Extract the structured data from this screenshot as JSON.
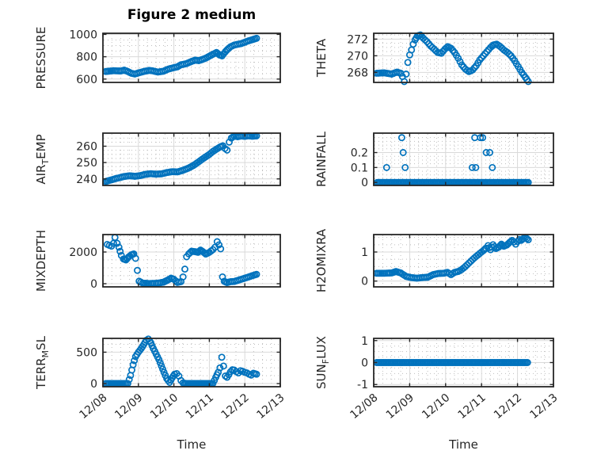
{
  "title": "Figure 2 medium",
  "xlabel": "Time",
  "x_tick_labels": [
    "12/08",
    "12/09",
    "12/10",
    "12/11",
    "12/12",
    "12/13"
  ],
  "colors": {
    "marker": "#0072BD",
    "frame": "#262626",
    "text": "#262626",
    "grid_major": "#d9d9d9",
    "grid_minor": "#bfbfbf",
    "background": "#ffffff"
  },
  "marker": {
    "radius": 3.6,
    "stroke_width": 1.7
  },
  "chart_data": [
    {
      "name": "PRESSURE",
      "type": "scatter",
      "row": 0,
      "col": 0,
      "ylabel_parts": [
        {
          "text": "PRESSURE",
          "sub": false
        }
      ],
      "xlim": [
        0,
        5
      ],
      "x_major_step": 1,
      "x_minor_step": 0.25,
      "ylim": [
        570,
        1010
      ],
      "yticks": [
        600,
        800,
        1000
      ],
      "ytick_labels": [
        "600",
        "800",
        "1000"
      ],
      "y_minor_step": 50,
      "sample_step_days": 0.045,
      "show_x_tick_labels": false,
      "trend": [
        [
          0.08,
          668
        ],
        [
          0.3,
          675
        ],
        [
          0.5,
          672
        ],
        [
          0.6,
          680
        ],
        [
          0.7,
          668
        ],
        [
          0.8,
          652
        ],
        [
          0.9,
          645
        ],
        [
          1.0,
          655
        ],
        [
          1.15,
          668
        ],
        [
          1.3,
          678
        ],
        [
          1.4,
          674
        ],
        [
          1.55,
          663
        ],
        [
          1.7,
          670
        ],
        [
          1.85,
          690
        ],
        [
          2.0,
          703
        ],
        [
          2.1,
          710
        ],
        [
          2.2,
          728
        ],
        [
          2.35,
          738
        ],
        [
          2.5,
          758
        ],
        [
          2.6,
          770
        ],
        [
          2.7,
          765
        ],
        [
          2.8,
          775
        ],
        [
          2.9,
          788
        ],
        [
          3.0,
          805
        ],
        [
          3.1,
          822
        ],
        [
          3.2,
          838
        ],
        [
          3.28,
          818
        ],
        [
          3.36,
          808
        ],
        [
          3.45,
          845
        ],
        [
          3.52,
          868
        ],
        [
          3.6,
          890
        ],
        [
          3.7,
          905
        ],
        [
          3.8,
          912
        ],
        [
          3.9,
          918
        ],
        [
          4.0,
          930
        ],
        [
          4.1,
          942
        ],
        [
          4.2,
          952
        ],
        [
          4.33,
          965
        ]
      ]
    },
    {
      "name": "THETA",
      "type": "scatter",
      "row": 0,
      "col": 1,
      "ylabel_parts": [
        {
          "text": "THETA",
          "sub": false
        }
      ],
      "xlim": [
        0,
        5
      ],
      "x_major_step": 1,
      "x_minor_step": 0.25,
      "ylim": [
        266.8,
        272.7
      ],
      "yticks": [
        268,
        270,
        272
      ],
      "ytick_labels": [
        "268",
        "270",
        "272"
      ],
      "y_minor_step": 0.5,
      "sample_step_days": 0.045,
      "show_x_tick_labels": false,
      "trend": [
        [
          0.08,
          267.9
        ],
        [
          0.3,
          267.95
        ],
        [
          0.5,
          267.8
        ],
        [
          0.65,
          268.05
        ],
        [
          0.75,
          267.9
        ],
        [
          0.8,
          267.5
        ],
        [
          0.85,
          266.9
        ],
        [
          0.9,
          267.8
        ],
        [
          0.95,
          269.2
        ],
        [
          1.0,
          270.1
        ],
        [
          1.05,
          270.7
        ],
        [
          1.1,
          271.4
        ],
        [
          1.15,
          271.9
        ],
        [
          1.22,
          272.4
        ],
        [
          1.3,
          272.5
        ],
        [
          1.38,
          272.1
        ],
        [
          1.48,
          271.7
        ],
        [
          1.58,
          271.2
        ],
        [
          1.68,
          270.8
        ],
        [
          1.78,
          270.4
        ],
        [
          1.88,
          270.3
        ],
        [
          1.98,
          270.8
        ],
        [
          2.06,
          271.1
        ],
        [
          2.15,
          270.9
        ],
        [
          2.25,
          270.4
        ],
        [
          2.35,
          269.7
        ],
        [
          2.45,
          268.9
        ],
        [
          2.55,
          268.4
        ],
        [
          2.65,
          268.1
        ],
        [
          2.75,
          268.3
        ],
        [
          2.85,
          268.8
        ],
        [
          2.95,
          269.5
        ],
        [
          3.05,
          270.0
        ],
        [
          3.15,
          270.5
        ],
        [
          3.25,
          271.0
        ],
        [
          3.33,
          271.3
        ],
        [
          3.42,
          271.4
        ],
        [
          3.52,
          271.1
        ],
        [
          3.62,
          270.7
        ],
        [
          3.72,
          270.4
        ],
        [
          3.82,
          270.0
        ],
        [
          3.92,
          269.4
        ],
        [
          4.02,
          268.7
        ],
        [
          4.12,
          268.0
        ],
        [
          4.22,
          267.4
        ],
        [
          4.3,
          266.9
        ]
      ]
    },
    {
      "name": "AIR_TEMP",
      "type": "scatter",
      "row": 1,
      "col": 0,
      "ylabel_parts": [
        {
          "text": "AIR",
          "sub": false
        },
        {
          "text": "T",
          "sub": true
        },
        {
          "text": "EMP",
          "sub": false
        }
      ],
      "xlim": [
        0,
        5
      ],
      "x_major_step": 1,
      "x_minor_step": 0.25,
      "ylim": [
        236,
        268
      ],
      "yticks": [
        240,
        250,
        260
      ],
      "ytick_labels": [
        "240",
        "250",
        "260"
      ],
      "y_minor_step": 2.5,
      "sample_step_days": 0.045,
      "show_x_tick_labels": false,
      "trend": [
        [
          0.08,
          238.4
        ],
        [
          0.2,
          239.2
        ],
        [
          0.4,
          240.4
        ],
        [
          0.6,
          241.5
        ],
        [
          0.75,
          241.9
        ],
        [
          0.9,
          241.6
        ],
        [
          1.05,
          242.0
        ],
        [
          1.2,
          242.8
        ],
        [
          1.35,
          243.2
        ],
        [
          1.5,
          242.9
        ],
        [
          1.65,
          243.1
        ],
        [
          1.8,
          243.9
        ],
        [
          1.95,
          244.4
        ],
        [
          2.1,
          244.3
        ],
        [
          2.25,
          245.2
        ],
        [
          2.4,
          246.5
        ],
        [
          2.55,
          248.2
        ],
        [
          2.7,
          250.5
        ],
        [
          2.85,
          252.8
        ],
        [
          3.0,
          255.0
        ],
        [
          3.1,
          256.8
        ],
        [
          3.2,
          258.2
        ],
        [
          3.3,
          259.5
        ],
        [
          3.38,
          260.3
        ],
        [
          3.44,
          258.6
        ],
        [
          3.5,
          257.6
        ],
        [
          3.56,
          262.5
        ],
        [
          3.62,
          265.0
        ],
        [
          3.7,
          266.2
        ],
        [
          3.8,
          265.8
        ],
        [
          3.9,
          266.3
        ],
        [
          4.0,
          266.0
        ],
        [
          4.1,
          266.4
        ],
        [
          4.2,
          266.1
        ],
        [
          4.33,
          266.3
        ]
      ]
    },
    {
      "name": "RAINFALL",
      "type": "scatter",
      "row": 1,
      "col": 1,
      "ylabel_parts": [
        {
          "text": "RAINFALL",
          "sub": false
        }
      ],
      "xlim": [
        0,
        5
      ],
      "x_major_step": 1,
      "x_minor_step": 0.25,
      "ylim": [
        -0.02,
        0.33
      ],
      "yticks": [
        0,
        0.1,
        0.2
      ],
      "ytick_labels": [
        "0",
        "0.1",
        "0.2"
      ],
      "y_minor_step": 0.025,
      "sample_step_days": 0.04,
      "show_x_tick_labels": false,
      "trend": [
        [
          0.1,
          0
        ],
        [
          4.3,
          0
        ]
      ],
      "points": [
        [
          0.36,
          0.1
        ],
        [
          0.78,
          0.3
        ],
        [
          0.82,
          0.2
        ],
        [
          0.875,
          0.1
        ],
        [
          2.74,
          0.1
        ],
        [
          2.81,
          0.3
        ],
        [
          2.84,
          0.1
        ],
        [
          2.97,
          0.3
        ],
        [
          3.03,
          0.3
        ],
        [
          3.13,
          0.2
        ],
        [
          3.23,
          0.2
        ],
        [
          3.3,
          0.1
        ]
      ]
    },
    {
      "name": "MIXDEPTH",
      "type": "scatter",
      "row": 2,
      "col": 0,
      "ylabel_parts": [
        {
          "text": "MIXDEPTH",
          "sub": false
        }
      ],
      "xlim": [
        0,
        5
      ],
      "x_major_step": 1,
      "x_minor_step": 0.25,
      "ylim": [
        -200,
        3100
      ],
      "yticks": [
        0,
        2000
      ],
      "ytick_labels": [
        "0",
        "2000"
      ],
      "y_minor_step": 500,
      "sample_step_days": 0.045,
      "show_x_tick_labels": false,
      "trend": [
        [
          0.12,
          2480
        ],
        [
          0.18,
          2420
        ],
        [
          0.24,
          2370
        ],
        [
          0.3,
          2550
        ],
        [
          0.34,
          2920
        ],
        [
          0.4,
          2550
        ],
        [
          0.45,
          2300
        ],
        [
          0.52,
          1780
        ],
        [
          0.58,
          1560
        ],
        [
          0.65,
          1500
        ],
        [
          0.72,
          1680
        ],
        [
          0.8,
          1820
        ],
        [
          0.87,
          1880
        ],
        [
          0.92,
          1600
        ],
        [
          0.97,
          840
        ],
        [
          1.02,
          160
        ],
        [
          1.12,
          40
        ],
        [
          1.3,
          10
        ],
        [
          1.5,
          25
        ],
        [
          1.7,
          90
        ],
        [
          1.82,
          220
        ],
        [
          1.92,
          350
        ],
        [
          2.0,
          280
        ],
        [
          2.1,
          80
        ],
        [
          2.2,
          130
        ],
        [
          2.26,
          430
        ],
        [
          2.31,
          920
        ],
        [
          2.36,
          1700
        ],
        [
          2.42,
          1880
        ],
        [
          2.5,
          2050
        ],
        [
          2.6,
          2020
        ],
        [
          2.68,
          1980
        ],
        [
          2.75,
          2120
        ],
        [
          2.82,
          2020
        ],
        [
          2.9,
          1870
        ],
        [
          3.0,
          1980
        ],
        [
          3.1,
          2150
        ],
        [
          3.16,
          2300
        ],
        [
          3.22,
          2650
        ],
        [
          3.27,
          2450
        ],
        [
          3.32,
          2200
        ],
        [
          3.37,
          430
        ],
        [
          3.42,
          150
        ],
        [
          3.5,
          70
        ],
        [
          3.6,
          130
        ],
        [
          3.7,
          140
        ],
        [
          3.8,
          210
        ],
        [
          3.9,
          280
        ],
        [
          4.0,
          350
        ],
        [
          4.1,
          420
        ],
        [
          4.2,
          500
        ],
        [
          4.33,
          590
        ]
      ]
    },
    {
      "name": "H2OMIXRA",
      "type": "scatter",
      "row": 2,
      "col": 1,
      "ylabel_parts": [
        {
          "text": "H2OMIXRA",
          "sub": false
        }
      ],
      "xlim": [
        0,
        5
      ],
      "x_major_step": 1,
      "x_minor_step": 0.25,
      "ylim": [
        -0.2,
        1.6
      ],
      "yticks": [
        0,
        1
      ],
      "ytick_labels": [
        "0",
        "1"
      ],
      "y_minor_step": 0.25,
      "sample_step_days": 0.045,
      "show_x_tick_labels": false,
      "trend": [
        [
          0.08,
          0.27
        ],
        [
          0.3,
          0.27
        ],
        [
          0.5,
          0.28
        ],
        [
          0.62,
          0.33
        ],
        [
          0.75,
          0.28
        ],
        [
          0.9,
          0.16
        ],
        [
          1.05,
          0.12
        ],
        [
          1.2,
          0.1
        ],
        [
          1.35,
          0.12
        ],
        [
          1.5,
          0.13
        ],
        [
          1.65,
          0.22
        ],
        [
          1.8,
          0.26
        ],
        [
          1.95,
          0.27
        ],
        [
          2.05,
          0.3
        ],
        [
          2.15,
          0.22
        ],
        [
          2.25,
          0.3
        ],
        [
          2.35,
          0.33
        ],
        [
          2.45,
          0.4
        ],
        [
          2.55,
          0.5
        ],
        [
          2.65,
          0.62
        ],
        [
          2.75,
          0.74
        ],
        [
          2.85,
          0.85
        ],
        [
          2.95,
          0.95
        ],
        [
          3.05,
          1.05
        ],
        [
          3.12,
          1.13
        ],
        [
          3.18,
          1.22
        ],
        [
          3.25,
          1.08
        ],
        [
          3.32,
          1.25
        ],
        [
          3.4,
          1.12
        ],
        [
          3.48,
          1.17
        ],
        [
          3.55,
          1.27
        ],
        [
          3.62,
          1.2
        ],
        [
          3.7,
          1.24
        ],
        [
          3.78,
          1.33
        ],
        [
          3.85,
          1.4
        ],
        [
          3.9,
          1.35
        ],
        [
          3.95,
          1.27
        ],
        [
          4.0,
          1.36
        ],
        [
          4.05,
          1.43
        ],
        [
          4.1,
          1.4
        ],
        [
          4.17,
          1.47
        ],
        [
          4.22,
          1.5
        ],
        [
          4.3,
          1.42
        ]
      ]
    },
    {
      "name": "TERR_MSL",
      "type": "scatter",
      "row": 3,
      "col": 0,
      "ylabel_parts": [
        {
          "text": "TERR",
          "sub": false
        },
        {
          "text": "M",
          "sub": true
        },
        {
          "text": "SL",
          "sub": false
        }
      ],
      "xlim": [
        0,
        5
      ],
      "x_major_step": 1,
      "x_minor_step": 0.25,
      "ylim": [
        -50,
        720
      ],
      "yticks": [
        0,
        500
      ],
      "ytick_labels": [
        "0",
        "500"
      ],
      "y_minor_step": 125,
      "sample_step_days": 0.045,
      "show_x_tick_labels": true,
      "trend": [
        [
          0.08,
          0
        ],
        [
          0.7,
          0
        ],
        [
          0.78,
          130
        ],
        [
          0.85,
          300
        ],
        [
          0.92,
          430
        ],
        [
          1.0,
          500
        ],
        [
          1.08,
          560
        ],
        [
          1.15,
          620
        ],
        [
          1.22,
          690
        ],
        [
          1.28,
          710
        ],
        [
          1.35,
          650
        ],
        [
          1.42,
          560
        ],
        [
          1.5,
          470
        ],
        [
          1.58,
          380
        ],
        [
          1.65,
          280
        ],
        [
          1.72,
          180
        ],
        [
          1.8,
          80
        ],
        [
          1.88,
          20
        ],
        [
          1.95,
          90
        ],
        [
          2.02,
          150
        ],
        [
          2.08,
          160
        ],
        [
          2.14,
          120
        ],
        [
          2.2,
          50
        ],
        [
          2.26,
          10
        ],
        [
          2.35,
          0
        ],
        [
          3.1,
          0
        ],
        [
          3.18,
          100
        ],
        [
          3.25,
          180
        ],
        [
          3.3,
          250
        ],
        [
          3.35,
          420
        ],
        [
          3.4,
          280
        ],
        [
          3.45,
          120
        ],
        [
          3.5,
          100
        ],
        [
          3.55,
          140
        ],
        [
          3.6,
          190
        ],
        [
          3.65,
          220
        ],
        [
          3.7,
          215
        ],
        [
          3.76,
          190
        ],
        [
          3.82,
          170
        ],
        [
          3.88,
          205
        ],
        [
          3.94,
          195
        ],
        [
          4.0,
          180
        ],
        [
          4.06,
          170
        ],
        [
          4.12,
          150
        ],
        [
          4.18,
          135
        ],
        [
          4.24,
          165
        ],
        [
          4.33,
          150
        ]
      ]
    },
    {
      "name": "SUN_FLUX",
      "type": "scatter",
      "row": 3,
      "col": 1,
      "ylabel_parts": [
        {
          "text": "SUN",
          "sub": false
        },
        {
          "text": "F",
          "sub": true
        },
        {
          "text": "LUX",
          "sub": false
        }
      ],
      "xlim": [
        0,
        5
      ],
      "x_major_step": 1,
      "x_minor_step": 0.25,
      "ylim": [
        -1.1,
        1.1
      ],
      "yticks": [
        -1,
        0,
        1
      ],
      "ytick_labels": [
        "-1",
        "0",
        "1"
      ],
      "y_minor_step": 0.25,
      "sample_step_days": 0.04,
      "show_x_tick_labels": true,
      "trend": [
        [
          0.08,
          0
        ],
        [
          4.28,
          0
        ]
      ]
    }
  ]
}
